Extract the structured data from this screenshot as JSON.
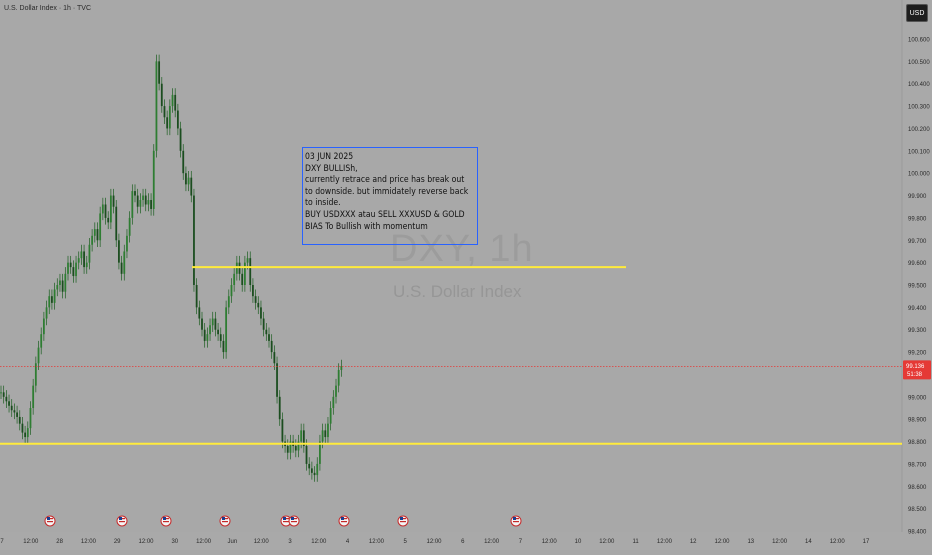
{
  "header": {
    "symbol_title": "U.S. Dollar Index · 1h · TVC",
    "currency": "USD"
  },
  "watermark": {
    "title": "DXY, 1h",
    "subtitle": "U.S. Dollar Index"
  },
  "note": {
    "lines": [
      "03 JUN  2025",
      "DXY BULLISh,",
      "currently retrace and price has break out",
      "to downside. but immidately reverse back",
      "to inside.",
      "BUY USDXXX atau SELL XXXUSD & GOLD",
      "BIAS To Bullish with momentum"
    ]
  },
  "colors": {
    "background": "#a8a8a8",
    "candle": "#2e7d32",
    "level_line": "#ffeb3b",
    "price_line": "#e53935",
    "note_border": "#2962ff",
    "price_badge": "#e53935"
  },
  "price_badge": {
    "price": "99.136",
    "countdown": "51:38"
  },
  "chart_data": {
    "type": "candlestick",
    "title": "DXY, 1h",
    "subtitle": "U.S. Dollar Index",
    "ylim": [
      98.4,
      100.7
    ],
    "y_ticks": [
      "100.600",
      "100.500",
      "100.400",
      "100.300",
      "100.200",
      "100.100",
      "100.000",
      "99.900",
      "99.800",
      "99.700",
      "99.600",
      "99.500",
      "99.400",
      "99.300",
      "99.200",
      "99.100",
      "99.000",
      "98.900",
      "98.800",
      "98.700",
      "98.600",
      "98.500",
      "98.400"
    ],
    "x_ticks": [
      "7",
      "12:00",
      "28",
      "12:00",
      "29",
      "12:00",
      "30",
      "12:00",
      "Jun",
      "12:00",
      "3",
      "12:00",
      "4",
      "12:00",
      "5",
      "12:00",
      "6",
      "12:00",
      "7",
      "12:00",
      "10",
      "12:00",
      "11",
      "12:00",
      "12",
      "12:00",
      "13",
      "12:00",
      "14",
      "12:00",
      "17"
    ],
    "horizontal_levels": [
      99.58,
      98.79
    ],
    "current_price": 99.136,
    "grid": false,
    "events_icons": 8,
    "series_close": [
      99.02,
      99.0,
      98.98,
      98.96,
      98.94,
      98.93,
      98.91,
      98.88,
      98.84,
      98.82,
      98.86,
      98.95,
      99.05,
      99.15,
      99.22,
      99.28,
      99.35,
      99.4,
      99.45,
      99.42,
      99.48,
      99.5,
      99.52,
      99.47,
      99.55,
      99.6,
      99.58,
      99.54,
      99.6,
      99.62,
      99.65,
      99.58,
      99.6,
      99.68,
      99.72,
      99.75,
      99.7,
      99.82,
      99.86,
      99.8,
      99.78,
      99.9,
      99.85,
      99.7,
      99.6,
      99.55,
      99.65,
      99.72,
      99.8,
      99.92,
      99.9,
      99.85,
      99.88,
      99.9,
      99.86,
      99.88,
      99.84,
      100.1,
      100.5,
      100.4,
      100.3,
      100.25,
      100.2,
      100.3,
      100.35,
      100.28,
      100.2,
      100.1,
      100.0,
      99.95,
      99.98,
      99.9,
      99.5,
      99.4,
      99.35,
      99.3,
      99.25,
      99.28,
      99.32,
      99.35,
      99.3,
      99.28,
      99.25,
      99.2,
      99.4,
      99.45,
      99.5,
      99.55,
      99.6,
      99.55,
      99.5,
      99.6,
      99.62,
      99.5,
      99.45,
      99.42,
      99.4,
      99.35,
      99.3,
      99.28,
      99.25,
      99.2,
      99.15,
      99.0,
      98.9,
      98.8,
      98.78,
      98.75,
      98.8,
      98.78,
      98.76,
      98.8,
      98.85,
      98.78,
      98.7,
      98.68,
      98.66,
      98.65,
      98.7,
      98.8,
      98.85,
      98.82,
      98.88,
      98.95,
      99.0,
      99.05,
      99.12,
      99.136
    ]
  }
}
